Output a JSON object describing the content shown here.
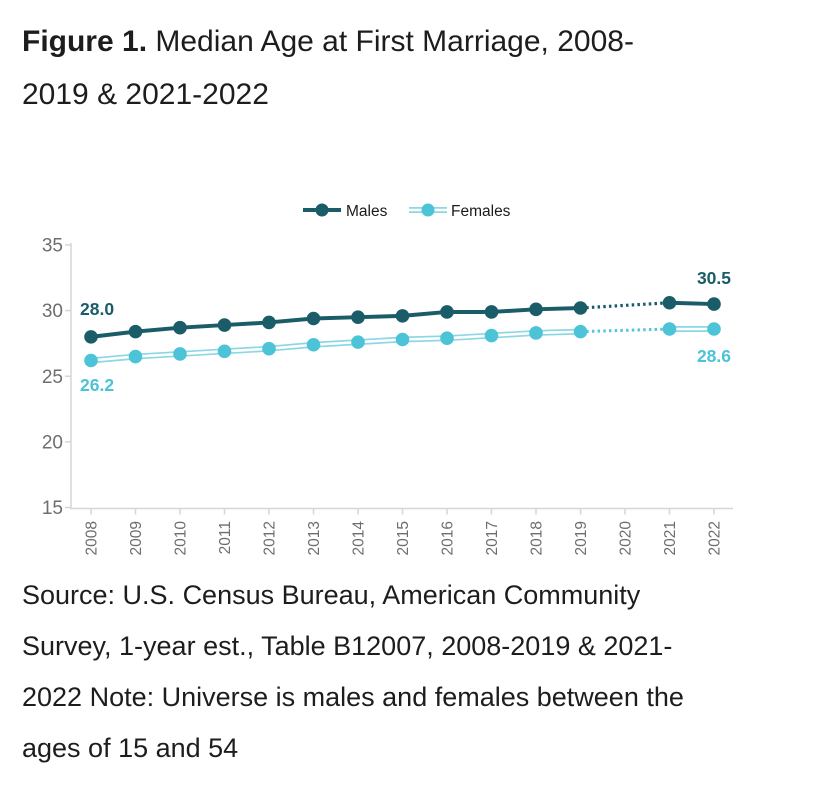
{
  "title": {
    "label": "Figure 1.",
    "line1_rest": " Median Age at First Marriage, 2008-",
    "line2": "2019 & 2021-2022"
  },
  "chart_data": {
    "type": "line",
    "title": "Median Age at First Marriage, 2008-2019 & 2021-2022",
    "x": [
      "2008",
      "2009",
      "2010",
      "2011",
      "2012",
      "2013",
      "2014",
      "2015",
      "2016",
      "2017",
      "2018",
      "2019",
      "2020",
      "2021",
      "2022"
    ],
    "missing_years": [
      "2020"
    ],
    "gap_style": "dotted segment bridges 2019 to 2021 (no 2020 estimate)",
    "ylim": [
      15,
      35
    ],
    "yticks": [
      15,
      20,
      25,
      30,
      35
    ],
    "grid": false,
    "legend_position": "top-center",
    "axis_color": "#d6d6d6",
    "tick_label_color": "#6e6e6e",
    "series": [
      {
        "name": "Males",
        "color": "#1a5d68",
        "values": [
          28.0,
          28.4,
          28.7,
          28.9,
          29.1,
          29.4,
          29.5,
          29.6,
          29.9,
          29.9,
          30.1,
          30.2,
          null,
          30.6,
          30.5
        ],
        "start_label": "28.0",
        "end_label": "30.5"
      },
      {
        "name": "Females",
        "color": "#4cc3d7",
        "line_color": "#8cd7e4",
        "gap_line_color": "#54c6da",
        "values": [
          26.2,
          26.5,
          26.7,
          26.9,
          27.1,
          27.4,
          27.6,
          27.8,
          27.9,
          28.1,
          28.3,
          28.4,
          null,
          28.6,
          28.6
        ],
        "start_label": "26.2",
        "end_label": "28.6"
      }
    ]
  },
  "source_note": {
    "lines": [
      "Source: U.S. Census Bureau, American Community",
      "Survey, 1-year est., Table B12007, 2008-2019 & 2021-",
      "2022 Note: Universe is males and females between the",
      "ages of 15 and 54"
    ]
  }
}
